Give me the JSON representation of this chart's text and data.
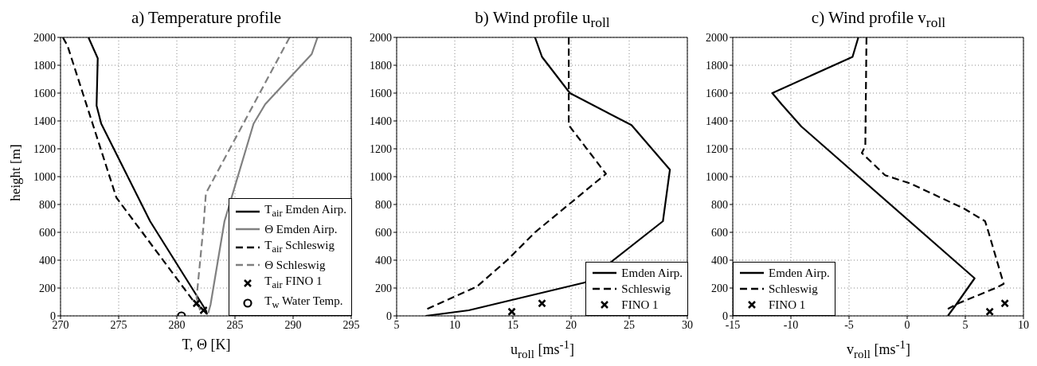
{
  "chart_data": [
    {
      "type": "line",
      "title": "a) Temperature profile",
      "xlabel": "T, Θ [K]",
      "ylabel": "height [m]",
      "xlim": [
        270,
        295
      ],
      "xticks": [
        270,
        275,
        280,
        285,
        290,
        295
      ],
      "ylim": [
        0,
        2000
      ],
      "yticks": [
        0,
        200,
        400,
        600,
        800,
        1000,
        1200,
        1400,
        1600,
        1800,
        2000
      ],
      "grid": true,
      "legend": "bottom right",
      "series": [
        {
          "name": "T$_{air}$ Emden Airp.",
          "color": "#000000",
          "line_style": "solid",
          "x": [
            272.4,
            273.2,
            273.1,
            273.5,
            277.7,
            282.5,
            282.6
          ],
          "values": [
            2000,
            1850,
            1510,
            1380,
            680,
            40,
            10
          ]
        },
        {
          "name": "Θ  Emden Airp.",
          "color": "#808080",
          "line_style": "solid",
          "x": [
            292.1,
            291.6,
            287.6,
            286.6,
            284.1,
            282.9,
            282.7
          ],
          "values": [
            2000,
            1880,
            1520,
            1380,
            680,
            80,
            20
          ]
        },
        {
          "name": "T$_{air}$ Schleswig",
          "color": "#000000",
          "line_style": "dashed",
          "x": [
            270.2,
            270.6,
            274.8,
            281.4,
            282.2
          ],
          "values": [
            2000,
            1940,
            850,
            110,
            40
          ]
        },
        {
          "name": "Θ  Schleswig",
          "color": "#808080",
          "line_style": "dashed",
          "x": [
            289.7,
            282.5,
            282.3,
            281.7,
            282.0
          ],
          "values": [
            2000,
            880,
            650,
            130,
            40
          ]
        },
        {
          "name": "T$_{air}$ FINO 1",
          "type": "scatter",
          "marker": "cross",
          "color": "#000000",
          "x": [
            281.7,
            282.3
          ],
          "values": [
            90,
            40
          ]
        },
        {
          "name": "T$_{w}$ Water Temp.",
          "type": "scatter",
          "marker": "circle",
          "color": "#000000",
          "x": [
            280.4
          ],
          "values": [
            0
          ]
        }
      ]
    },
    {
      "type": "line",
      "title": "b) Wind profile u$_{roll}$",
      "xlabel": "u$_{roll}$ [ms$^{-1}$]",
      "xlim": [
        5,
        30
      ],
      "xticks": [
        5,
        10,
        15,
        20,
        25,
        30
      ],
      "ylim": [
        0,
        2000
      ],
      "yticks": [
        0,
        200,
        400,
        600,
        800,
        1000,
        1200,
        1400,
        1600,
        1800,
        2000
      ],
      "grid": true,
      "legend": "bottom right",
      "series": [
        {
          "name": "Emden Airp.",
          "color": "#000000",
          "line_style": "solid",
          "x": [
            16.9,
            17.5,
            19.9,
            25.2,
            28.5,
            27.9,
            21.2,
            11.2,
            7.5
          ],
          "values": [
            2000,
            1860,
            1600,
            1370,
            1050,
            680,
            240,
            40,
            0
          ]
        },
        {
          "name": "Schleswig",
          "color": "#000000",
          "line_style": "dashed",
          "x": [
            19.8,
            19.8,
            23.0,
            16.9,
            14.5,
            11.9,
            7.5
          ],
          "values": [
            2000,
            1370,
            1020,
            600,
            400,
            210,
            45
          ]
        },
        {
          "name": "FINO 1",
          "type": "scatter",
          "marker": "cross",
          "color": "#000000",
          "x": [
            14.9,
            17.5
          ],
          "values": [
            30,
            90
          ]
        }
      ]
    },
    {
      "type": "line",
      "title": "c) Wind profile v$_{roll}$",
      "xlabel": "v$_{roll}$ [ms$^{-1}$]",
      "xlim": [
        -15,
        10
      ],
      "xticks": [
        -15,
        -10,
        -5,
        0,
        5,
        10
      ],
      "ylim": [
        0,
        2000
      ],
      "yticks": [
        0,
        200,
        400,
        600,
        800,
        1000,
        1200,
        1400,
        1600,
        1800,
        2000
      ],
      "grid": true,
      "legend": "bottom left",
      "series": [
        {
          "name": "Emden Airp.",
          "color": "#000000",
          "line_style": "solid",
          "x": [
            -4.2,
            -4.7,
            -11.6,
            -10.8,
            -9.1,
            5.8,
            4.2,
            3.5
          ],
          "values": [
            2000,
            1860,
            1600,
            1520,
            1360,
            270,
            80,
            0
          ]
        },
        {
          "name": "Schleswig",
          "color": "#000000",
          "line_style": "dashed",
          "x": [
            -3.5,
            -3.6,
            -3.9,
            -1.9,
            0.3,
            4.9,
            6.7,
            7.0,
            8.3,
            7.6,
            4.4,
            3.5
          ],
          "values": [
            2000,
            1220,
            1170,
            1010,
            950,
            770,
            680,
            600,
            230,
            200,
            90,
            50
          ]
        },
        {
          "name": "FINO 1",
          "type": "scatter",
          "marker": "cross",
          "color": "#000000",
          "x": [
            7.1,
            8.4
          ],
          "values": [
            30,
            90
          ]
        }
      ]
    }
  ]
}
